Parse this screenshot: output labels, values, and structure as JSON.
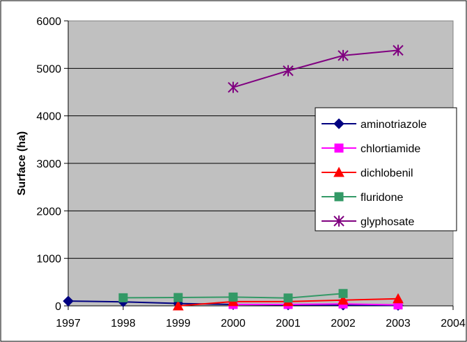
{
  "chart_data": {
    "type": "line",
    "title": "",
    "xlabel": "",
    "ylabel": "Surface (ha)",
    "xlim": [
      1997,
      2004
    ],
    "ylim": [
      0,
      6000
    ],
    "xticks": [
      "1997",
      "1998",
      "1999",
      "2000",
      "2001",
      "2002",
      "2003",
      "2004"
    ],
    "yticks": [
      "0",
      "1000",
      "2000",
      "3000",
      "4000",
      "5000",
      "6000"
    ],
    "grid": true,
    "legend_position": "right",
    "series": [
      {
        "name": "aminotriazole",
        "color": "#000080",
        "marker": "diamond",
        "x": [
          1997,
          1998,
          1999,
          2000,
          2001,
          2002,
          2003
        ],
        "values": [
          100,
          85,
          50,
          30,
          20,
          15,
          10
        ]
      },
      {
        "name": "chlortiamide",
        "color": "#ff00ff",
        "marker": "square",
        "x": [
          2000,
          2001,
          2002,
          2003
        ],
        "values": [
          30,
          30,
          40,
          20
        ]
      },
      {
        "name": "dichlobenil",
        "color": "#ff0000",
        "marker": "triangle",
        "x": [
          1999,
          2000,
          2001,
          2002,
          2003
        ],
        "values": [
          0,
          90,
          90,
          120,
          150
        ]
      },
      {
        "name": "fluridone",
        "color": "#339966",
        "marker": "square",
        "x": [
          1998,
          1999,
          2000,
          2001,
          2002
        ],
        "values": [
          170,
          175,
          185,
          165,
          260
        ]
      },
      {
        "name": "glyphosate",
        "color": "#800080",
        "marker": "asterisk",
        "x": [
          2000,
          2001,
          2002,
          2003
        ],
        "values": [
          4600,
          4950,
          5270,
          5380
        ]
      }
    ]
  }
}
